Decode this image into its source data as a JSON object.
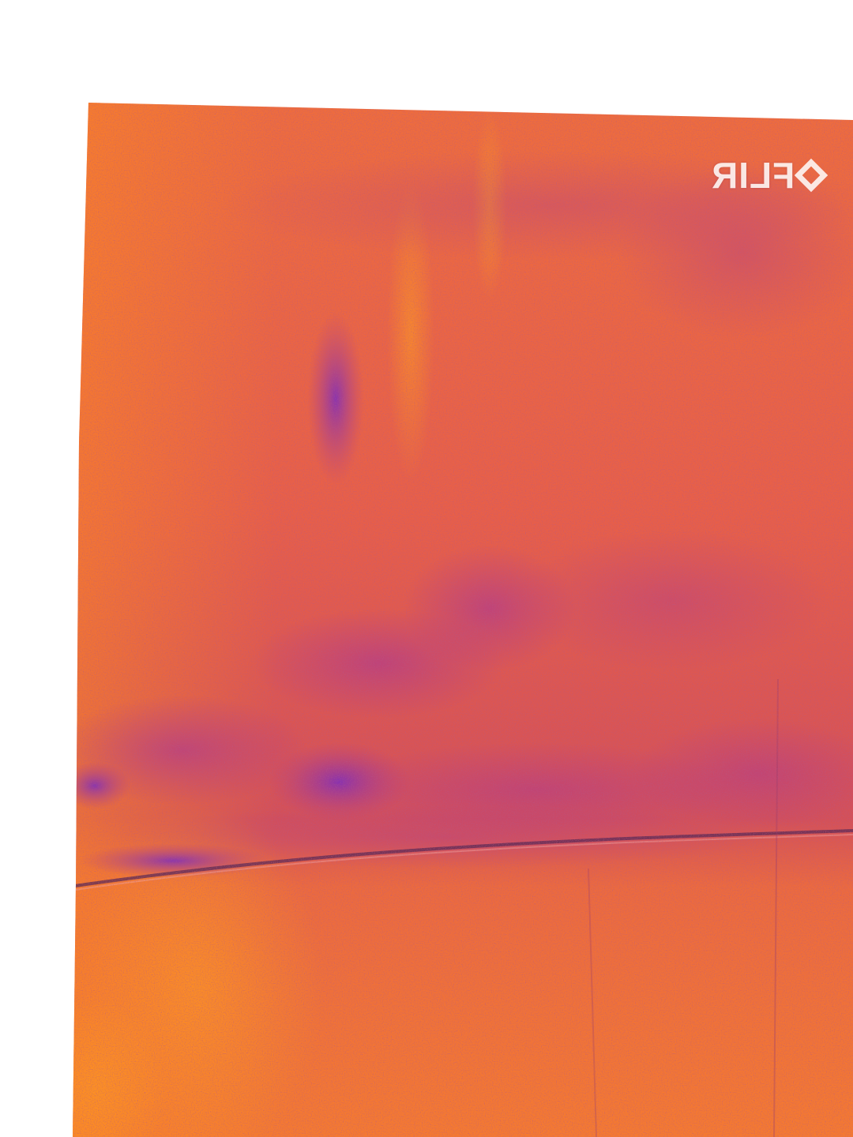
{
  "image": {
    "background_color": "#ffffff",
    "palette": {
      "hot": "#ff8a1e",
      "warm": "#f06a3c",
      "mid": "#e2564e",
      "cool": "#b23a8a",
      "cold": "#7a2cc0"
    },
    "watermark": {
      "text": "FLIR",
      "icon": "flir-diamond-logo",
      "mirrored": true
    }
  }
}
